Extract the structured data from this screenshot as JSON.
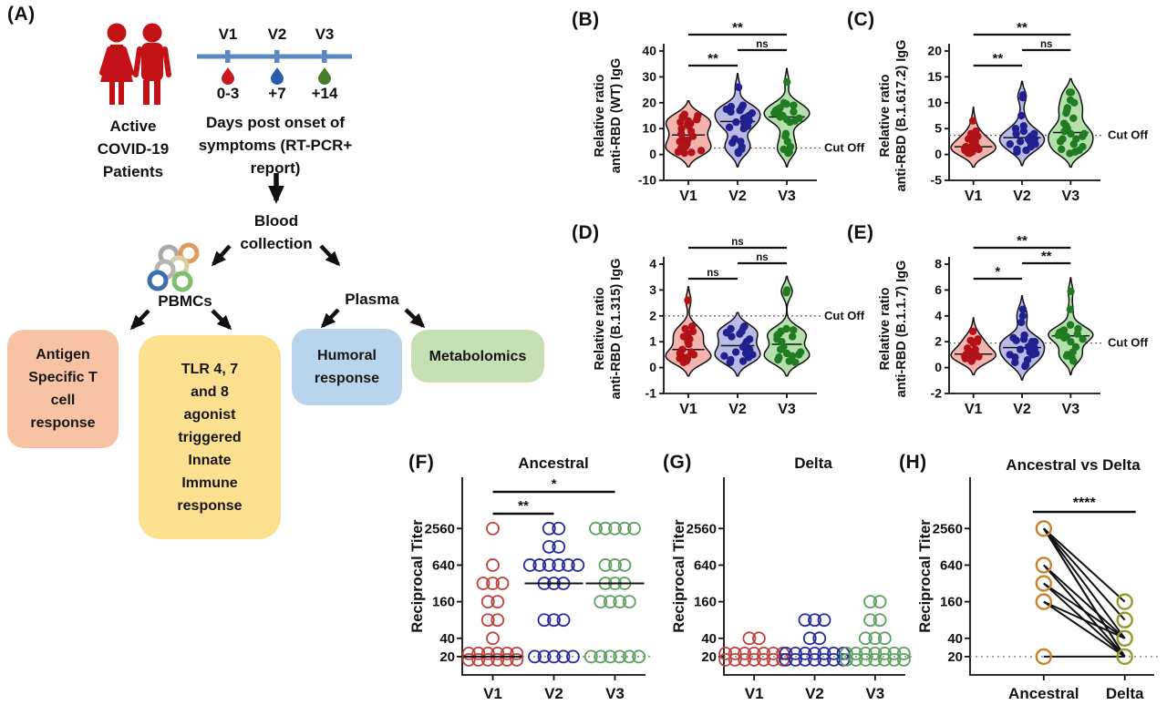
{
  "panel_a": {
    "label": "(A)",
    "patients_caption": "Active\nCOVID-19\nPatients",
    "timeline": {
      "visits": [
        "V1",
        "V2",
        "V3"
      ],
      "days": [
        "0-3",
        "+7",
        "+14"
      ],
      "caption": "Days post onset of\nsymptoms (RT-PCR+\nreport)"
    },
    "blood_label": "Blood\ncollection",
    "pbmcs_label": "PBMCs",
    "plasma_label": "Plasma",
    "boxes": [
      {
        "label": "Antigen\nSpecific T\ncell\nresponse",
        "color": "#f7c3a4"
      },
      {
        "label": "TLR 4, 7\nand 8\nagonist\ntriggered\nInnate\nImmune\nresponse",
        "color": "#fce08f"
      },
      {
        "label": "Humoral\nresponse",
        "color": "#b9d5ee"
      },
      {
        "label": "Metabolomics",
        "color": "#c6dfb3"
      }
    ],
    "colors": {
      "patients": "#c41118",
      "timeline": "#5b87c5",
      "droplets": [
        "#c81820",
        "#2b5caa",
        "#4a7c2f"
      ],
      "arrow": "#111111"
    }
  },
  "chart_data": [
    {
      "panel": "B",
      "panel_label": "(B)",
      "type": "violin",
      "ylabel": [
        "Relative ratio",
        "anti-RBD (WT) IgG"
      ],
      "ylim": [
        -10,
        40
      ],
      "yticks": [
        -10,
        0,
        10,
        20,
        30,
        40
      ],
      "cutoff": 2.5,
      "cutoff_label": "Cut Off",
      "categories": [
        "V1",
        "V2",
        "V3"
      ],
      "series": [
        {
          "name": "V1",
          "dot": "#b01217",
          "fill": "#f5b3ae",
          "points": [
            15.5,
            15,
            14.5,
            13.5,
            13,
            12.5,
            12,
            11.5,
            11,
            10,
            9,
            8,
            7,
            6,
            5.5,
            5,
            4,
            3,
            2.5,
            2,
            1.5,
            1,
            0.8,
            0.5
          ]
        },
        {
          "name": "V2",
          "dot": "#20208f",
          "fill": "#b9bbe6",
          "points": [
            26,
            19,
            18.5,
            18,
            17.5,
            17,
            16.5,
            16,
            15,
            14.5,
            14,
            13,
            12.5,
            12,
            11,
            10.5,
            10,
            6,
            5,
            4.5,
            3,
            2,
            1,
            0.5
          ]
        },
        {
          "name": "V3",
          "dot": "#207b23",
          "fill": "#b4e0ab",
          "points": [
            28,
            20,
            19.5,
            19,
            18,
            17.5,
            17,
            16.5,
            16,
            15.5,
            15,
            14.5,
            14,
            13.5,
            13,
            12.5,
            8,
            7,
            5,
            3,
            2,
            1,
            0.5
          ]
        }
      ],
      "significance": [
        {
          "a": 0,
          "b": 1,
          "label": "**",
          "row": 0
        },
        {
          "a": 1,
          "b": 2,
          "label": "ns",
          "row": 1
        },
        {
          "a": 0,
          "b": 2,
          "label": "**",
          "row": 2
        }
      ]
    },
    {
      "panel": "C",
      "panel_label": "(C)",
      "type": "violin",
      "ylabel": [
        "Relative ratio",
        "anti-RBD (B.1.617.2) IgG"
      ],
      "ylim": [
        -5,
        20
      ],
      "yticks": [
        -5,
        0,
        5,
        10,
        15,
        20
      ],
      "cutoff": 3.7,
      "cutoff_label": "Cut Off",
      "categories": [
        "V1",
        "V2",
        "V3"
      ],
      "series": [
        {
          "name": "V1",
          "dot": "#b01217",
          "fill": "#f5b3ae",
          "points": [
            6.5,
            4.5,
            4,
            3.5,
            3,
            3,
            2.5,
            2,
            2,
            1.5,
            1.5,
            1.2,
            1,
            1,
            0.8,
            0.8,
            0.5,
            0.5,
            0.3,
            0.2
          ]
        },
        {
          "name": "V2",
          "dot": "#20208f",
          "fill": "#b9bbe6",
          "points": [
            11.5,
            11,
            7.5,
            5.5,
            5,
            4.5,
            4,
            4,
            3.5,
            3.5,
            3,
            3,
            2.5,
            2.5,
            2,
            2,
            1.5,
            1,
            0.8,
            0.5
          ]
        },
        {
          "name": "V3",
          "dot": "#207b23",
          "fill": "#b4e0ab",
          "points": [
            12,
            12,
            10.5,
            10,
            9,
            8.5,
            8,
            7,
            6,
            5.5,
            5,
            4.5,
            4,
            4,
            3.5,
            3,
            3,
            2.5,
            2,
            1.5,
            1,
            0.8,
            0.5,
            0.2
          ]
        }
      ],
      "significance": [
        {
          "a": 0,
          "b": 1,
          "label": "**",
          "row": 0
        },
        {
          "a": 1,
          "b": 2,
          "label": "ns",
          "row": 1
        },
        {
          "a": 0,
          "b": 2,
          "label": "**",
          "row": 2
        }
      ]
    },
    {
      "panel": "D",
      "panel_label": "(D)",
      "type": "violin",
      "ylabel": [
        "Relative ratio",
        "anti-RBD (B.1.315) IgG"
      ],
      "ylim": [
        -1,
        4
      ],
      "yticks": [
        -1,
        0,
        1,
        2,
        3,
        4
      ],
      "cutoff": 2.0,
      "cutoff_label": "Cut Off",
      "categories": [
        "V1",
        "V2",
        "V3"
      ],
      "series": [
        {
          "name": "V1",
          "dot": "#b01217",
          "fill": "#f5b3ae",
          "points": [
            2.6,
            1.6,
            1.5,
            1.4,
            1.3,
            1.2,
            1.1,
            1,
            0.9,
            0.7,
            0.6,
            0.55,
            0.5,
            0.45,
            0.4,
            0.35,
            0.3,
            0.25,
            0.2
          ]
        },
        {
          "name": "V2",
          "dot": "#20208f",
          "fill": "#b9bbe6",
          "points": [
            1.6,
            1.55,
            1.5,
            1.4,
            1.35,
            1.3,
            1.2,
            1.1,
            1,
            0.9,
            0.8,
            0.7,
            0.6,
            0.55,
            0.5,
            0.45,
            0.4,
            0.3,
            0.25,
            0.2
          ]
        },
        {
          "name": "V3",
          "dot": "#207b23",
          "fill": "#b4e0ab",
          "points": [
            3.0,
            2.9,
            1.5,
            1.45,
            1.4,
            1.3,
            1.25,
            1.2,
            1.1,
            1,
            0.8,
            0.7,
            0.6,
            0.55,
            0.5,
            0.45,
            0.4,
            0.3,
            0.25,
            0.2
          ]
        }
      ],
      "significance": [
        {
          "a": 0,
          "b": 1,
          "label": "ns",
          "row": 0
        },
        {
          "a": 1,
          "b": 2,
          "label": "ns",
          "row": 1
        },
        {
          "a": 0,
          "b": 2,
          "label": "ns",
          "row": 2
        }
      ]
    },
    {
      "panel": "E",
      "panel_label": "(E)",
      "type": "violin",
      "ylabel": [
        "Relative ratio",
        "anti-RBD (B.1.1.7) IgG"
      ],
      "ylim": [
        -2,
        8
      ],
      "yticks": [
        -2,
        0,
        2,
        4,
        6,
        8
      ],
      "cutoff": 1.9,
      "cutoff_label": "Cut Off",
      "categories": [
        "V1",
        "V2",
        "V3"
      ],
      "series": [
        {
          "name": "V1",
          "dot": "#b01217",
          "fill": "#f5b3ae",
          "points": [
            2.8,
            2.2,
            2.1,
            2,
            1.9,
            1.5,
            1.4,
            1.2,
            1.1,
            1,
            0.95,
            0.9,
            0.85,
            0.8,
            0.75,
            0.7,
            0.6,
            0.5
          ]
        },
        {
          "name": "V2",
          "dot": "#20208f",
          "fill": "#b9bbe6",
          "points": [
            4.5,
            4,
            3.5,
            2.5,
            2.3,
            2.2,
            2.1,
            2,
            2,
            1.8,
            1.6,
            1.5,
            1.4,
            1.2,
            1.1,
            1,
            1,
            0.8,
            0.6,
            0.4,
            0.2,
            0.1
          ]
        },
        {
          "name": "V3",
          "dot": "#207b23",
          "fill": "#b4e0ab",
          "points": [
            5.9,
            4.5,
            3.3,
            3,
            2.9,
            2.8,
            2.7,
            2.6,
            2.5,
            2.5,
            2.4,
            2.3,
            2.2,
            2,
            1.6,
            1.2,
            1,
            0.9,
            0.8,
            0.5
          ]
        }
      ],
      "significance": [
        {
          "a": 0,
          "b": 1,
          "label": "*",
          "row": 0
        },
        {
          "a": 1,
          "b": 2,
          "label": "**",
          "row": 1
        },
        {
          "a": 0,
          "b": 2,
          "label": "**",
          "row": 2
        }
      ]
    },
    {
      "panel": "F",
      "panel_label": "(F)",
      "type": "scatter",
      "title": "Ancestral",
      "ylabel": "Reciprocal Titer",
      "yticks": [
        20,
        40,
        160,
        640,
        2560
      ],
      "baseline": 20,
      "categories": [
        "V1",
        "V2",
        "V3"
      ],
      "colors": [
        "#c0403c",
        "#252a9e",
        "#5aa05e"
      ],
      "groups": [
        [
          [
            2560,
            1
          ],
          [
            640,
            1
          ],
          [
            320,
            3
          ],
          [
            160,
            2
          ],
          [
            80,
            2
          ],
          [
            40,
            1
          ],
          [
            20,
            12
          ]
        ],
        [
          [
            2560,
            2
          ],
          [
            1280,
            2
          ],
          [
            640,
            6
          ],
          [
            320,
            3
          ],
          [
            80,
            3
          ],
          [
            20,
            5
          ]
        ],
        [
          [
            2560,
            5
          ],
          [
            640,
            3
          ],
          [
            320,
            3
          ],
          [
            160,
            4
          ],
          [
            20,
            6
          ]
        ]
      ],
      "medians": [
        20,
        320,
        320
      ],
      "significance": [
        {
          "a": 0,
          "b": 1,
          "label": "**",
          "row": 0
        },
        {
          "a": 0,
          "b": 2,
          "label": "*",
          "row": 1
        }
      ]
    },
    {
      "panel": "G",
      "panel_label": "(G)",
      "type": "scatter",
      "title": "Delta",
      "ylabel": "Reciprocal Titer",
      "yticks": [
        20,
        40,
        160,
        640,
        2560
      ],
      "baseline": 20,
      "categories": [
        "V1",
        "V2",
        "V3"
      ],
      "colors": [
        "#c0403c",
        "#252a9e",
        "#5aa05e"
      ],
      "groups": [
        [
          [
            40,
            2
          ],
          [
            20,
            14
          ]
        ],
        [
          [
            80,
            3
          ],
          [
            40,
            2
          ],
          [
            20,
            14
          ]
        ],
        [
          [
            160,
            2
          ],
          [
            80,
            2
          ],
          [
            40,
            3
          ],
          [
            20,
            14
          ]
        ]
      ],
      "medians": [
        null,
        null,
        null
      ],
      "significance": []
    },
    {
      "panel": "H",
      "panel_label": "(H)",
      "type": "paired-scatter",
      "title": "Ancestral vs Delta",
      "ylabel": "Reciprocal Titer",
      "yticks": [
        20,
        40,
        160,
        640,
        2560
      ],
      "baseline": 20,
      "categories": [
        "Ancestral",
        "Delta"
      ],
      "colors": [
        "#c8832f",
        "#99992b"
      ],
      "left_values": [
        2560,
        640,
        320,
        160,
        20
      ],
      "right_values": [
        160,
        80,
        40,
        20
      ],
      "pairs": [
        [
          2560,
          160
        ],
        [
          2560,
          80
        ],
        [
          2560,
          40
        ],
        [
          2560,
          20
        ],
        [
          2560,
          20
        ],
        [
          640,
          40
        ],
        [
          640,
          20
        ],
        [
          320,
          40
        ],
        [
          320,
          20
        ],
        [
          160,
          40
        ],
        [
          160,
          20
        ],
        [
          20,
          20
        ]
      ],
      "significance": [
        {
          "a": 0,
          "b": 1,
          "label": "****",
          "row": 0
        }
      ]
    }
  ]
}
